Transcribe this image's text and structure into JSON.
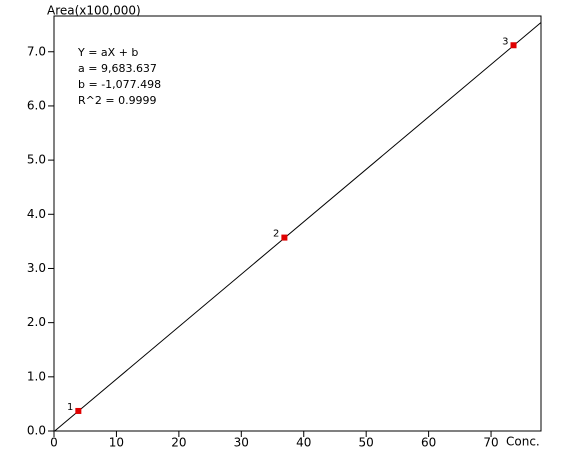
{
  "chart_data": {
    "type": "scatter",
    "y_label": "Area(x100,000)",
    "x_label": "Conc.",
    "annotations": [
      "Y = aX + b",
      "a = 9,683.637",
      "b = -1,077.498",
      "R^2 = 0.9999"
    ],
    "x": [
      3.9,
      36.9,
      73.6
    ],
    "values": [
      0.37,
      3.57,
      7.12
    ],
    "point_labels": [
      "1",
      "2",
      "3"
    ],
    "color": "#e00000",
    "fit": {
      "x": [
        0.11,
        78
      ],
      "values": [
        0,
        7.54
      ],
      "color": "#000000"
    },
    "xlim": [
      0,
      78
    ],
    "ylim": [
      0,
      7.66
    ],
    "xticks": [
      0,
      10,
      20,
      30,
      40,
      50,
      60,
      70
    ],
    "yticks": [
      {
        "value": 0,
        "label": "0.0"
      },
      {
        "value": 1,
        "label": "1.0"
      },
      {
        "value": 2,
        "label": "2.0"
      },
      {
        "value": 3,
        "label": "3.0"
      },
      {
        "value": 4,
        "label": "4.0"
      },
      {
        "value": 5,
        "label": "5.0"
      },
      {
        "value": 6,
        "label": "6.0"
      },
      {
        "value": 7,
        "label": "7.0"
      }
    ]
  }
}
